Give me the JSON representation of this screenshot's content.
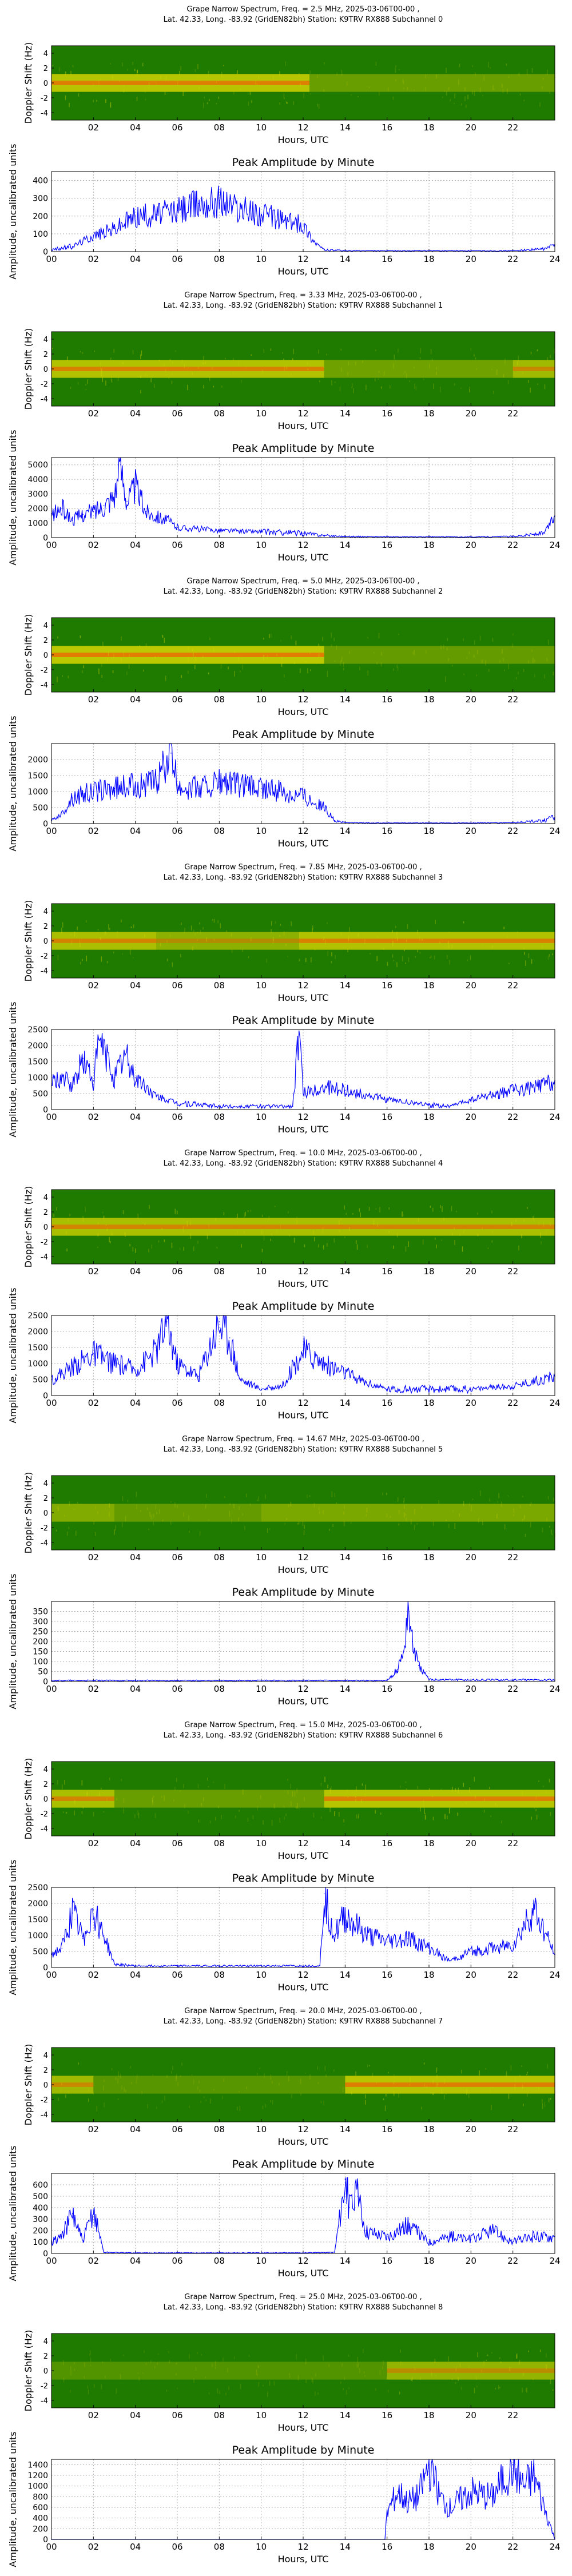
{
  "colors": {
    "spectrogram_bg": "#1f7a00",
    "spectrogram_band": "#d4d400",
    "spectrogram_core": "#ff4400",
    "amplitude_line": "#0000ff",
    "grid": "#b0b0b0"
  },
  "chart_data": [
    {
      "type": "heatmap",
      "title": "Grape Narrow Spectrum, Freq. = 2.5 MHz, 2025-03-06T00-00 ,",
      "subtitle": "Lat.  42.33, Long. -83.92 (GridEN82bh) Station: K9TRV RX888 Subchannel 0",
      "xlabel": "Hours, UTC",
      "ylabel": "Doppler Shift (Hz)",
      "xlim": [
        0,
        24
      ],
      "ylim": [
        -5,
        5
      ],
      "x_ticks": [
        "02",
        "04",
        "06",
        "08",
        "10",
        "12",
        "14",
        "16",
        "18",
        "20",
        "22"
      ],
      "y_ticks": [
        "4",
        "2",
        "0",
        "-2",
        "-4"
      ],
      "activity": [
        [
          0,
          12.3,
          0.9
        ],
        [
          12.3,
          24,
          0.25
        ]
      ]
    },
    {
      "type": "line",
      "title": "Peak Amplitude by Minute",
      "xlabel": "Hours, UTC",
      "ylabel": "Amplitude, uncalibrated units",
      "xlim": [
        0,
        24
      ],
      "ylim": [
        0,
        450
      ],
      "x_ticks": [
        "00",
        "02",
        "04",
        "06",
        "08",
        "10",
        "12",
        "14",
        "16",
        "18",
        "20",
        "22",
        "24"
      ],
      "y_ticks": [
        0,
        100,
        200,
        300,
        400
      ],
      "x": [
        0,
        1,
        2,
        3,
        4,
        5,
        6,
        7,
        8,
        9,
        10,
        11,
        12,
        12.5,
        13,
        14,
        16,
        18,
        20,
        22,
        23.5,
        24
      ],
      "values": [
        10,
        30,
        90,
        130,
        200,
        210,
        230,
        270,
        290,
        240,
        210,
        180,
        150,
        60,
        10,
        5,
        5,
        5,
        5,
        5,
        15,
        40
      ]
    },
    {
      "type": "heatmap",
      "title": "Grape Narrow Spectrum, Freq. = 3.33 MHz, 2025-03-06T00-00 ,",
      "subtitle": "Lat.  42.33, Long. -83.92 (GridEN82bh) Station: K9TRV RX888 Subchannel 1",
      "xlabel": "Hours, UTC",
      "ylabel": "Doppler Shift (Hz)",
      "xlim": [
        0,
        24
      ],
      "ylim": [
        -5,
        5
      ],
      "x_ticks": [
        "02",
        "04",
        "06",
        "08",
        "10",
        "12",
        "14",
        "16",
        "18",
        "20",
        "22"
      ],
      "y_ticks": [
        "4",
        "2",
        "0",
        "-2",
        "-4"
      ],
      "activity": [
        [
          0,
          13,
          0.85
        ],
        [
          13,
          22,
          0.3
        ],
        [
          22,
          24,
          0.7
        ]
      ]
    },
    {
      "type": "line",
      "title": "Peak Amplitude by Minute",
      "xlabel": "Hours, UTC",
      "ylabel": "Amplitude, uncalibrated units",
      "xlim": [
        0,
        24
      ],
      "ylim": [
        0,
        5500
      ],
      "x_ticks": [
        "00",
        "02",
        "04",
        "06",
        "08",
        "10",
        "12",
        "14",
        "16",
        "18",
        "20",
        "22",
        "24"
      ],
      "y_ticks": [
        0,
        1000,
        2000,
        3000,
        4000,
        5000
      ],
      "x": [
        0,
        0.5,
        1,
        1.5,
        2,
        2.5,
        3,
        3.3,
        3.6,
        4,
        4.5,
        5,
        5.5,
        6,
        8,
        10,
        12,
        13,
        14,
        16,
        18,
        20,
        22,
        23.5,
        24
      ],
      "values": [
        1500,
        2000,
        1200,
        1600,
        1800,
        2200,
        3000,
        5000,
        2500,
        3500,
        1800,
        1500,
        1200,
        700,
        500,
        400,
        300,
        150,
        80,
        50,
        50,
        50,
        80,
        300,
        1500
      ]
    },
    {
      "type": "heatmap",
      "title": "Grape Narrow Spectrum, Freq. = 5.0 MHz, 2025-03-06T00-00 ,",
      "subtitle": "Lat.  42.33, Long. -83.92 (GridEN82bh) Station: K9TRV RX888 Subchannel 2",
      "xlabel": "Hours, UTC",
      "ylabel": "Doppler Shift (Hz)",
      "xlim": [
        0,
        24
      ],
      "ylim": [
        -5,
        5
      ],
      "x_ticks": [
        "02",
        "04",
        "06",
        "08",
        "10",
        "12",
        "14",
        "16",
        "18",
        "20",
        "22"
      ],
      "y_ticks": [
        "4",
        "2",
        "0",
        "-2",
        "-4"
      ],
      "activity": [
        [
          0,
          13,
          0.95
        ],
        [
          13,
          24,
          0.2
        ]
      ]
    },
    {
      "type": "line",
      "title": "Peak Amplitude by Minute",
      "xlabel": "Hours, UTC",
      "ylabel": "Amplitude, uncalibrated units",
      "xlim": [
        0,
        24
      ],
      "ylim": [
        0,
        2500
      ],
      "x_ticks": [
        "00",
        "02",
        "04",
        "06",
        "08",
        "10",
        "12",
        "14",
        "16",
        "18",
        "20",
        "22",
        "24"
      ],
      "y_ticks": [
        0,
        500,
        1000,
        1500,
        2000
      ],
      "x": [
        0,
        0.5,
        1,
        2,
        3,
        4,
        5,
        5.7,
        6,
        7,
        8,
        9,
        10,
        11,
        12,
        13,
        13.5,
        14,
        16,
        18,
        20,
        22,
        23.5,
        24
      ],
      "values": [
        100,
        300,
        800,
        1000,
        1100,
        1200,
        1300,
        2200,
        1200,
        1100,
        1300,
        1200,
        1100,
        1000,
        900,
        500,
        100,
        30,
        20,
        20,
        20,
        30,
        100,
        200
      ]
    },
    {
      "type": "heatmap",
      "title": "Grape Narrow Spectrum, Freq. = 7.85 MHz, 2025-03-06T00-00 ,",
      "subtitle": "Lat.  42.33, Long. -83.92 (GridEN82bh) Station: K9TRV RX888 Subchannel 3",
      "xlabel": "Hours, UTC",
      "ylabel": "Doppler Shift (Hz)",
      "xlim": [
        0,
        24
      ],
      "ylim": [
        -5,
        5
      ],
      "x_ticks": [
        "02",
        "04",
        "06",
        "08",
        "10",
        "12",
        "14",
        "16",
        "18",
        "20",
        "22"
      ],
      "y_ticks": [
        "4",
        "2",
        "0",
        "-2",
        "-4"
      ],
      "activity": [
        [
          0,
          5,
          0.8
        ],
        [
          5,
          11.8,
          0.55
        ],
        [
          11.8,
          24,
          0.85
        ]
      ]
    },
    {
      "type": "line",
      "title": "Peak Amplitude by Minute",
      "xlabel": "Hours, UTC",
      "ylabel": "Amplitude, uncalibrated units",
      "xlim": [
        0,
        24
      ],
      "ylim": [
        0,
        2500
      ],
      "x_ticks": [
        "00",
        "02",
        "04",
        "06",
        "08",
        "10",
        "12",
        "14",
        "16",
        "18",
        "20",
        "22",
        "24"
      ],
      "y_ticks": [
        0,
        500,
        1000,
        1500,
        2000,
        2500
      ],
      "x": [
        0,
        0.5,
        1,
        1.5,
        2,
        2.3,
        3,
        3.5,
        4,
        5,
        6,
        8,
        10,
        11.5,
        11.8,
        12,
        13,
        14,
        16,
        18,
        19,
        20,
        22,
        23,
        24
      ],
      "values": [
        800,
        1000,
        700,
        1600,
        900,
        2200,
        1000,
        1700,
        1000,
        400,
        200,
        100,
        100,
        100,
        2400,
        500,
        700,
        600,
        300,
        150,
        100,
        300,
        600,
        700,
        900
      ]
    },
    {
      "type": "heatmap",
      "title": "Grape Narrow Spectrum, Freq. = 10.0 MHz, 2025-03-06T00-00 ,",
      "subtitle": "Lat.  42.33, Long. -83.92 (GridEN82bh) Station: K9TRV RX888 Subchannel 4",
      "xlabel": "Hours, UTC",
      "ylabel": "Doppler Shift (Hz)",
      "xlim": [
        0,
        24
      ],
      "ylim": [
        -5,
        5
      ],
      "x_ticks": [
        "02",
        "04",
        "06",
        "08",
        "10",
        "12",
        "14",
        "16",
        "18",
        "20",
        "22"
      ],
      "y_ticks": [
        "4",
        "2",
        "0",
        "-2",
        "-4"
      ],
      "activity": [
        [
          0,
          24,
          0.8
        ]
      ]
    },
    {
      "type": "line",
      "title": "Peak Amplitude by Minute",
      "xlabel": "Hours, UTC",
      "ylabel": "Amplitude, uncalibrated units",
      "xlim": [
        0,
        24
      ],
      "ylim": [
        0,
        2500
      ],
      "x_ticks": [
        "00",
        "02",
        "04",
        "06",
        "08",
        "10",
        "12",
        "14",
        "16",
        "18",
        "20",
        "22",
        "24"
      ],
      "y_ticks": [
        0,
        500,
        1000,
        1500,
        2000,
        2500
      ],
      "x": [
        0,
        1,
        2,
        3,
        4,
        5,
        5.5,
        6,
        7,
        8,
        8.5,
        9,
        10,
        11,
        12,
        13,
        14,
        15,
        16,
        18,
        20,
        22,
        24
      ],
      "values": [
        500,
        900,
        1300,
        1000,
        800,
        1400,
        2300,
        1000,
        600,
        2300,
        1800,
        500,
        200,
        300,
        1400,
        1000,
        700,
        400,
        200,
        200,
        200,
        300,
        600
      ]
    },
    {
      "type": "heatmap",
      "title": "Grape Narrow Spectrum, Freq. = 14.67 MHz, 2025-03-06T00-00 ,",
      "subtitle": "Lat.  42.33, Long. -83.92 (GridEN82bh) Station: K9TRV RX888 Subchannel 5",
      "xlabel": "Hours, UTC",
      "ylabel": "Doppler Shift (Hz)",
      "xlim": [
        0,
        24
      ],
      "ylim": [
        -5,
        5
      ],
      "x_ticks": [
        "02",
        "04",
        "06",
        "08",
        "10",
        "12",
        "14",
        "16",
        "18",
        "20",
        "22"
      ],
      "y_ticks": [
        "4",
        "2",
        "0",
        "-2",
        "-4"
      ],
      "activity": [
        [
          0,
          3,
          0.45
        ],
        [
          3,
          10,
          0.2
        ],
        [
          10,
          24,
          0.4
        ]
      ]
    },
    {
      "type": "line",
      "title": "Peak Amplitude by Minute",
      "xlabel": "Hours, UTC",
      "ylabel": "Amplitude, uncalibrated units",
      "xlim": [
        0,
        24
      ],
      "ylim": [
        0,
        400
      ],
      "x_ticks": [
        "00",
        "02",
        "04",
        "06",
        "08",
        "10",
        "12",
        "14",
        "16",
        "18",
        "20",
        "22",
        "24"
      ],
      "y_ticks": [
        0,
        50,
        100,
        150,
        200,
        250,
        300,
        350
      ],
      "x": [
        0,
        4,
        8,
        12,
        16,
        16.5,
        16.8,
        17,
        17.2,
        17.5,
        18,
        20,
        24
      ],
      "values": [
        5,
        5,
        5,
        5,
        5,
        60,
        150,
        370,
        200,
        80,
        10,
        8,
        8
      ]
    },
    {
      "type": "heatmap",
      "title": "Grape Narrow Spectrum, Freq. = 15.0 MHz, 2025-03-06T00-00 ,",
      "subtitle": "Lat.  42.33, Long. -83.92 (GridEN82bh) Station: K9TRV RX888 Subchannel 6",
      "xlabel": "Hours, UTC",
      "ylabel": "Doppler Shift (Hz)",
      "xlim": [
        0,
        24
      ],
      "ylim": [
        -5,
        5
      ],
      "x_ticks": [
        "02",
        "04",
        "06",
        "08",
        "10",
        "12",
        "14",
        "16",
        "18",
        "20",
        "22"
      ],
      "y_ticks": [
        "4",
        "2",
        "0",
        "-2",
        "-4"
      ],
      "activity": [
        [
          0,
          3,
          0.8
        ],
        [
          3,
          13,
          0.25
        ],
        [
          13,
          24,
          0.9
        ]
      ]
    },
    {
      "type": "line",
      "title": "Peak Amplitude by Minute",
      "xlabel": "Hours, UTC",
      "ylabel": "Amplitude, uncalibrated units",
      "xlim": [
        0,
        24
      ],
      "ylim": [
        0,
        2500
      ],
      "x_ticks": [
        "00",
        "02",
        "04",
        "06",
        "08",
        "10",
        "12",
        "14",
        "16",
        "18",
        "20",
        "22",
        "24"
      ],
      "y_ticks": [
        0,
        500,
        1000,
        1500,
        2000,
        2500
      ],
      "x": [
        0,
        0.5,
        1,
        1.5,
        2,
        2.5,
        3,
        4,
        6,
        8,
        10,
        12,
        12.8,
        13,
        13.5,
        14,
        15,
        16,
        17,
        18,
        19,
        20,
        22,
        23,
        24
      ],
      "values": [
        400,
        600,
        1700,
        900,
        1800,
        1000,
        100,
        50,
        50,
        50,
        50,
        50,
        50,
        2300,
        1000,
        1600,
        1000,
        800,
        900,
        600,
        200,
        500,
        700,
        1800,
        400
      ]
    },
    {
      "type": "heatmap",
      "title": "Grape Narrow Spectrum, Freq. = 20.0 MHz, 2025-03-06T00-00 ,",
      "subtitle": "Lat.  42.33, Long. -83.92 (GridEN82bh) Station: K9TRV RX888 Subchannel 7",
      "xlabel": "Hours, UTC",
      "ylabel": "Doppler Shift (Hz)",
      "xlim": [
        0,
        24
      ],
      "ylim": [
        -5,
        5
      ],
      "x_ticks": [
        "02",
        "04",
        "06",
        "08",
        "10",
        "12",
        "14",
        "16",
        "18",
        "20",
        "22"
      ],
      "y_ticks": [
        "4",
        "2",
        "0",
        "-2",
        "-4"
      ],
      "activity": [
        [
          0,
          2,
          0.7
        ],
        [
          2,
          14,
          0.1
        ],
        [
          14,
          24,
          0.9
        ]
      ]
    },
    {
      "type": "line",
      "title": "Peak Amplitude by Minute",
      "xlabel": "Hours, UTC",
      "ylabel": "Amplitude, uncalibrated units",
      "xlim": [
        0,
        24
      ],
      "ylim": [
        0,
        700
      ],
      "x_ticks": [
        "00",
        "02",
        "04",
        "06",
        "08",
        "10",
        "12",
        "14",
        "16",
        "18",
        "20",
        "22",
        "24"
      ],
      "y_ticks": [
        0,
        100,
        200,
        300,
        400,
        500,
        600
      ],
      "x": [
        0,
        0.5,
        1,
        1.5,
        2,
        2.5,
        4,
        8,
        12,
        13.5,
        14,
        14.2,
        14.6,
        15,
        16,
        17,
        18,
        19,
        20,
        21,
        22,
        23,
        24
      ],
      "values": [
        100,
        150,
        350,
        100,
        380,
        10,
        5,
        5,
        5,
        10,
        650,
        400,
        500,
        200,
        150,
        250,
        100,
        150,
        120,
        200,
        100,
        150,
        150
      ]
    },
    {
      "type": "heatmap",
      "title": "Grape Narrow Spectrum, Freq. = 25.0 MHz, 2025-03-06T00-00 ,",
      "subtitle": "Lat.  42.33, Long. -83.92 (GridEN82bh) Station: K9TRV RX888 Subchannel 8",
      "xlabel": "Hours, UTC",
      "ylabel": "Doppler Shift (Hz)",
      "xlim": [
        0,
        24
      ],
      "ylim": [
        -5,
        5
      ],
      "x_ticks": [
        "02",
        "04",
        "06",
        "08",
        "10",
        "12",
        "14",
        "16",
        "18",
        "20",
        "22"
      ],
      "y_ticks": [
        "4",
        "2",
        "0",
        "-2",
        "-4"
      ],
      "activity": [
        [
          0,
          16,
          0.05
        ],
        [
          16,
          24,
          0.6
        ]
      ]
    },
    {
      "type": "line",
      "title": "Peak Amplitude by Minute",
      "xlabel": "Hours, UTC",
      "ylabel": "Amplitude, uncalibrated units",
      "xlim": [
        0,
        24
      ],
      "ylim": [
        0,
        1500
      ],
      "x_ticks": [
        "00",
        "02",
        "04",
        "06",
        "08",
        "10",
        "12",
        "14",
        "16",
        "18",
        "20",
        "22",
        "24"
      ],
      "y_ticks": [
        0,
        200,
        400,
        600,
        800,
        1000,
        1200,
        1400
      ],
      "x": [
        0,
        8,
        15.9,
        16,
        16.5,
        17,
        17.5,
        18,
        18.5,
        19,
        20,
        21,
        22,
        22.5,
        23,
        24
      ],
      "values": [
        0,
        0,
        0,
        500,
        900,
        700,
        800,
        1400,
        800,
        600,
        900,
        800,
        1400,
        1000,
        1200,
        0
      ]
    }
  ]
}
